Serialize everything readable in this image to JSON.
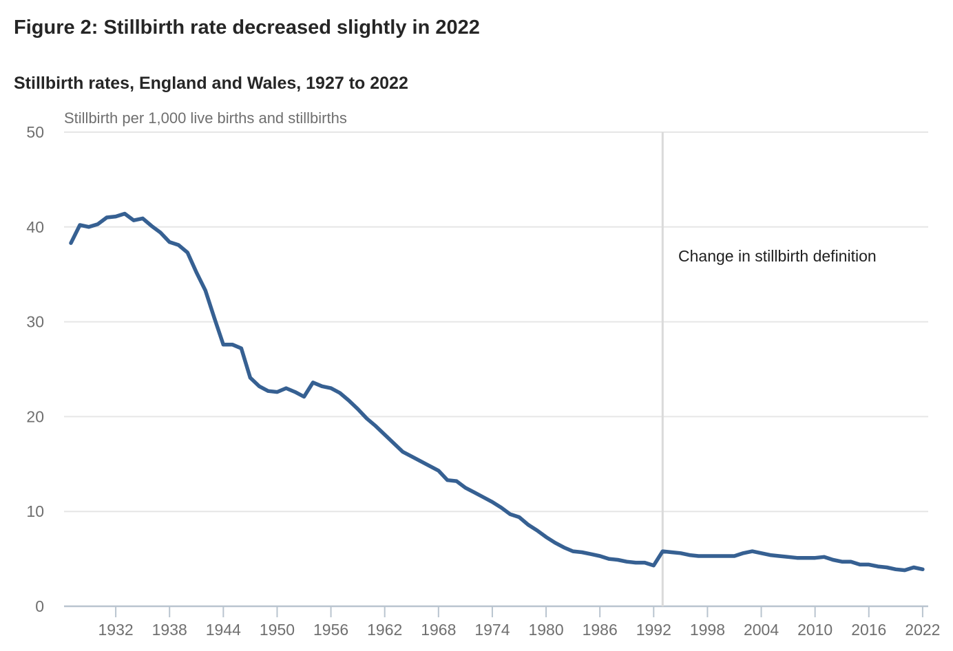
{
  "header": {
    "title": "Figure 2: Stillbirth rate decreased slightly in 2022",
    "subtitle": "Stillbirth rates, England and Wales, 1927 to 2022"
  },
  "chart": {
    "unit_label": "Stillbirth per 1,000 live births and stillbirths",
    "annotation_label": "Change in stillbirth definition"
  },
  "colors": {
    "line": "#366092",
    "gridline": "#e6e6e6",
    "axis": "#b9c4cf",
    "tick_text": "#6f6f6f",
    "heading_text": "#262626",
    "annotation_line": "#dadada",
    "annotation_text": "#1f1f1f"
  },
  "chart_data": {
    "type": "line",
    "title": "Figure 2: Stillbirth rate decreased slightly in 2022",
    "subtitle": "Stillbirth rates, England and Wales, 1927 to 2022",
    "ylabel": "Stillbirth per 1,000 live births and stillbirths",
    "xlabel": "",
    "ylim": [
      0,
      50
    ],
    "xlim": [
      1927,
      2022
    ],
    "yticks": [
      0,
      10,
      20,
      30,
      40,
      50
    ],
    "xticks": [
      1932,
      1938,
      1944,
      1950,
      1956,
      1962,
      1968,
      1974,
      1980,
      1986,
      1992,
      1998,
      2004,
      2010,
      2016,
      2022
    ],
    "grid": "horizontal",
    "legend": "none",
    "annotations": [
      {
        "type": "vline",
        "x": 1993,
        "label": "Change in stillbirth definition"
      }
    ],
    "series": [
      {
        "name": "Stillbirth rate",
        "x": [
          1927,
          1928,
          1929,
          1930,
          1931,
          1932,
          1933,
          1934,
          1935,
          1936,
          1937,
          1938,
          1939,
          1940,
          1941,
          1942,
          1943,
          1944,
          1945,
          1946,
          1947,
          1948,
          1949,
          1950,
          1951,
          1952,
          1953,
          1954,
          1955,
          1956,
          1957,
          1958,
          1959,
          1960,
          1961,
          1962,
          1963,
          1964,
          1965,
          1966,
          1967,
          1968,
          1969,
          1970,
          1971,
          1972,
          1973,
          1974,
          1975,
          1976,
          1977,
          1978,
          1979,
          1980,
          1981,
          1982,
          1983,
          1984,
          1985,
          1986,
          1987,
          1988,
          1989,
          1990,
          1991,
          1992,
          1993,
          1994,
          1995,
          1996,
          1997,
          1998,
          1999,
          2000,
          2001,
          2002,
          2003,
          2004,
          2005,
          2006,
          2007,
          2008,
          2009,
          2010,
          2011,
          2012,
          2013,
          2014,
          2015,
          2016,
          2017,
          2018,
          2019,
          2020,
          2021,
          2022
        ],
        "values": [
          38.3,
          40.2,
          40.0,
          40.3,
          41.0,
          41.1,
          41.4,
          40.7,
          40.9,
          40.1,
          39.4,
          38.4,
          38.1,
          37.3,
          35.2,
          33.3,
          30.4,
          27.6,
          27.6,
          27.2,
          24.1,
          23.2,
          22.7,
          22.6,
          23.0,
          22.6,
          22.1,
          23.6,
          23.2,
          23.0,
          22.5,
          21.7,
          20.8,
          19.8,
          19.0,
          18.1,
          17.2,
          16.3,
          15.8,
          15.3,
          14.8,
          14.3,
          13.3,
          13.2,
          12.5,
          12.0,
          11.5,
          11.0,
          10.4,
          9.7,
          9.4,
          8.6,
          8.0,
          7.3,
          6.7,
          6.2,
          5.8,
          5.7,
          5.5,
          5.3,
          5.0,
          4.9,
          4.7,
          4.6,
          4.6,
          4.3,
          5.8,
          5.7,
          5.6,
          5.4,
          5.3,
          5.3,
          5.3,
          5.3,
          5.3,
          5.6,
          5.8,
          5.6,
          5.4,
          5.3,
          5.2,
          5.1,
          5.1,
          5.1,
          5.2,
          4.9,
          4.7,
          4.7,
          4.4,
          4.4,
          4.2,
          4.1,
          3.9,
          3.8,
          4.1,
          3.9
        ]
      }
    ]
  }
}
